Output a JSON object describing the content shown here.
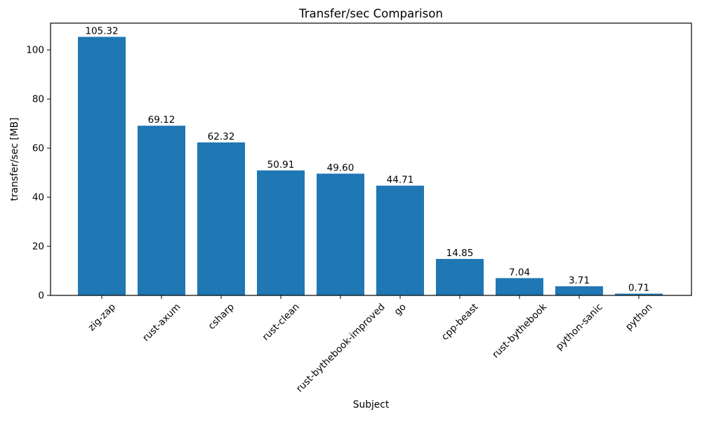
{
  "chart_data": {
    "type": "bar",
    "title": "Transfer/sec Comparison",
    "xlabel": "Subject",
    "ylabel": "transfer/sec [MB]",
    "categories": [
      "zig-zap",
      "rust-axum",
      "csharp",
      "rust-clean",
      "rust-bythebook-improved",
      "go",
      "cpp-beast",
      "rust-bythebook",
      "python-sanic",
      "python"
    ],
    "values": [
      105.32,
      69.12,
      62.32,
      50.91,
      49.6,
      44.71,
      14.85,
      7.04,
      3.71,
      0.71
    ],
    "value_label_decimals": 2,
    "yticks": [
      0,
      20,
      40,
      60,
      80,
      100
    ],
    "ylim": [
      0,
      110.9
    ],
    "x_tick_rotation": 45,
    "grid": false,
    "legend": null,
    "bar_color": "#1f77b4",
    "axis_color": "#000000",
    "text_color": "#000000",
    "background_color": "#ffffff"
  }
}
